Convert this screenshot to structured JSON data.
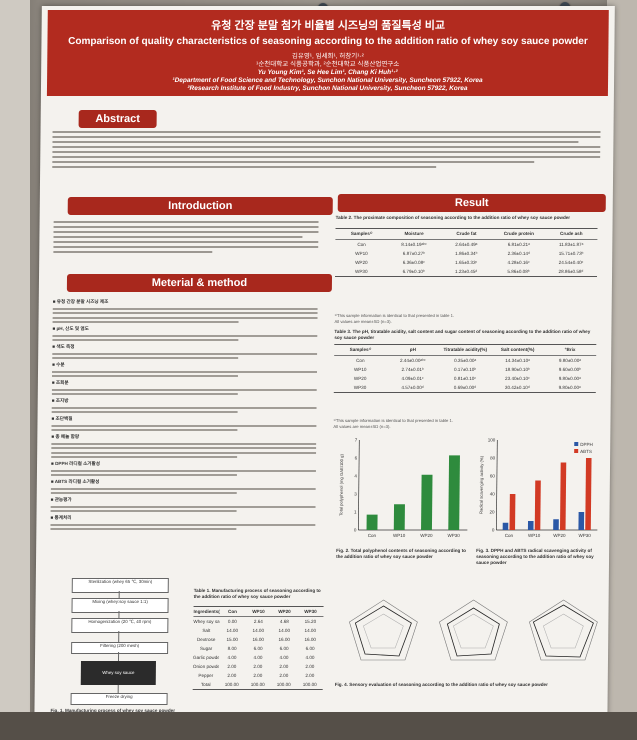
{
  "header": {
    "title_ko": "유청 간장 분말 첨가 비율별 시즈닝의 품질특성 비교",
    "title_en": "Comparison of quality characteristics of seasoning according to the addition ratio of whey soy sauce powder",
    "authors_ko": "김유영¹, 임세희¹, 허창기¹·²",
    "affil_ko": "¹순천대학교 식품공학과, ²순천대학교 식품산업연구소",
    "authors_en": "Yu Young Kim¹, Se Hee Lim¹, Chang Ki Huh¹·²",
    "affil_en1": "¹Department of Food Science and Technology, Sunchon National University, Suncheon 57922, Korea",
    "affil_en2": "²Research Institute of Food Industry, Sunchon National University, Suncheon 57922, Korea"
  },
  "sections": {
    "abstract": "Abstract",
    "introduction": "Introduction",
    "methods": "Meterial & method",
    "result": "Result"
  },
  "methods_headings": [
    "■ 유청 간장 분말 시즈닝 제조",
    "■ pH, 산도 및 염도",
    "■ 색도 측정",
    "■ 수분",
    "■ 조회분",
    "■ 조지방",
    "■ 조단백질",
    "■ 총 페놀 함량",
    "■ DPPH 라디컬 소거활성",
    "■ ABTS 라디컬 소거활성",
    "■ 관능평가",
    "■ 통계처리"
  ],
  "table2": {
    "caption": "Table 2. The proximate composition of seasoning according to the addition ratio of whey soy sauce powder",
    "headers": [
      "Samples¹⁾",
      "Moisture",
      "Crude fat",
      "Crude protein",
      "Crude ash"
    ],
    "rows": [
      [
        "Con",
        "8.14±0.19ᵃᵇᶜ",
        "2.64±0.49ᵃ",
        "6.81±0.21ᵃ",
        "11.83±1.87ᵃ"
      ],
      [
        "WP10",
        "6.87±0.27ᵇ",
        "1.86±0.34ᵇ",
        "2.36±0.14ᵈ",
        "15.71±0.73ᵇ"
      ],
      [
        "WP20",
        "6.36±0.08ᶜ",
        "1.65±0.33ᶜ",
        "4.28±0.16ᶜ",
        "24.54±0.40ᶜ"
      ],
      [
        "WP30",
        "6.79±0.10ᵇ",
        "1.23±0.45ᵈ",
        "5.86±0.08ᵇ",
        "28.86±0.58ᵈ"
      ]
    ]
  },
  "table3": {
    "caption": "Table 3. The pH, titratable acidity, salt content and sugar content of seasoning according to the addition ratio of whey soy sauce powder",
    "headers": [
      "Samples¹⁾",
      "pH",
      "Titratable acidity(%)",
      "Salt content(%)",
      "°Brix"
    ],
    "rows": [
      [
        "Con",
        "2.44±0.00ᵃᵇᶜ",
        "0.35±0.00ᵃ",
        "14.34±0.10ᵃ",
        "9.80±0.00ᵃ"
      ],
      [
        "WP10",
        "2.74±0.01ᵇ",
        "0.17±0.10ᵇ",
        "18.90±0.10ᵇ",
        "9.60±0.00ᵇ"
      ],
      [
        "WP20",
        "4.09±0.01ᶜ",
        "0.81±0.10ᶜ",
        "23.40±0.10ᶜ",
        "9.80±0.00ᵃ"
      ],
      [
        "WP30",
        "4.57±0.00ᵈ",
        "0.69±0.00ᵈ",
        "30.42±0.10ᵈ",
        "9.80±0.00ᵃ"
      ]
    ]
  },
  "table1": {
    "caption": "Table 1. Manufacturing process of seasoning according to the addition ratio of whey soy sauce powder",
    "headers": [
      "Ingredients(g)",
      "Con",
      "WP10",
      "WP20",
      "WP30"
    ],
    "rows": [
      [
        "Whey soy sauce",
        "0.00",
        "2.64",
        "4.68",
        "15.20"
      ],
      [
        "Salt",
        "14.00",
        "14.00",
        "14.00",
        "14.00"
      ],
      [
        "Dextrose",
        "15.00",
        "16.00",
        "16.00",
        "16.00"
      ],
      [
        "Sugar",
        "8.00",
        "6.00",
        "6.00",
        "6.00"
      ],
      [
        "Garlic powder",
        "4.00",
        "4.00",
        "4.00",
        "4.00"
      ],
      [
        "Onion powder",
        "2.00",
        "2.00",
        "2.00",
        "2.00"
      ],
      [
        "Pepper",
        "2.00",
        "2.00",
        "2.00",
        "2.00"
      ],
      [
        "Total",
        "100.00",
        "100.00",
        "100.00",
        "100.00"
      ]
    ]
  },
  "flow": {
    "caption": "Fig. 1. Manufacturing process of whey soy sauce powder",
    "steps": [
      "Sterilization (whey 65 ℃, 30min)",
      "Mixing (whey:soy sauce 1:1)",
      "Homogenization (20 ℃, 40 rpm)",
      "Filtering (200 mesh)",
      "Whey soy sauce",
      "Freeze drying"
    ]
  },
  "fig2": {
    "caption": "Fig. 2. Total polyphenol contents of seasoning according to the addition ratio of whey soy sauce powder",
    "ylabel": "Total polyphenol (mg GAE/100 g)"
  },
  "fig3": {
    "caption": "Fig. 3. DPPH and ABTS radical scavenging activity of seasoning according to the addition ratio of whey soy sauce powder",
    "legend": [
      "DPPH",
      "ABTS"
    ],
    "ylabel": "Radical scavenging activity (%)"
  },
  "fig4": {
    "caption": "Fig. 4. Sensory evaluation of seasoning according to the addition ratio of whey soy sauce powder"
  },
  "chart_data": [
    {
      "type": "bar",
      "title": "Total polyphenol",
      "categories": [
        "Con",
        "WP10",
        "WP20",
        "WP30"
      ],
      "values": [
        1.2,
        2.0,
        4.3,
        5.8
      ],
      "ylim": [
        0,
        7
      ],
      "color": "#2e8b3d"
    },
    {
      "type": "bar",
      "title": "Radical scavenging activity",
      "categories": [
        "Con",
        "WP10",
        "WP20",
        "WP30"
      ],
      "series": [
        {
          "name": "DPPH",
          "values": [
            8,
            10,
            12,
            20
          ],
          "color": "#2b58a6"
        },
        {
          "name": "ABTS",
          "values": [
            40,
            55,
            75,
            80
          ],
          "color": "#d23a24"
        }
      ],
      "ylim": [
        0,
        100
      ]
    }
  ],
  "colors": {
    "accent": "#a8281d",
    "header": "#b22b1f"
  }
}
